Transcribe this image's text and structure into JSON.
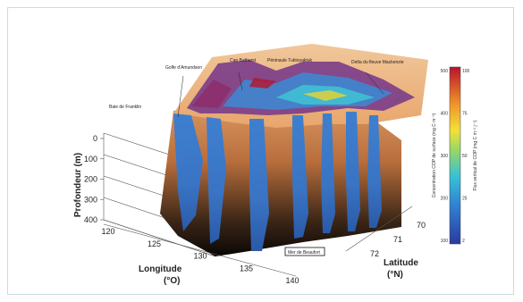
{
  "chart_data": {
    "type": "3d-surface",
    "depth_axis": {
      "label": "Profondeur (m)",
      "ticks": [
        "0",
        "100",
        "200",
        "300",
        "400"
      ],
      "range": [
        0,
        400
      ]
    },
    "longitude_axis": {
      "label": "Longitude",
      "unit": "(°O)",
      "ticks": [
        "120",
        "125",
        "130",
        "135",
        "140"
      ]
    },
    "latitude_axis": {
      "label": "Latitude",
      "unit": "(°N)",
      "ticks": [
        "70",
        "71",
        "72"
      ]
    },
    "annotations": {
      "golfe": "Golfe d'Amundsen",
      "cap": "Cap Bathurst",
      "peninsule": "Péninsule Tuktoyaktuk",
      "delta": "Delta du fleuve Mackenzie",
      "baie": "Baie de Franklin",
      "mer": "Mer de Beaufort"
    },
    "colorbar": {
      "left_label": "Concentration COP de surface (mg C m⁻³)",
      "right_label": "Flux vertical de COP (mg C m⁻² j⁻¹)",
      "left_ticks": [
        "100",
        "200",
        "300",
        "400",
        "500"
      ],
      "right_ticks": [
        "2",
        "25",
        "50",
        "75",
        "100"
      ]
    }
  }
}
